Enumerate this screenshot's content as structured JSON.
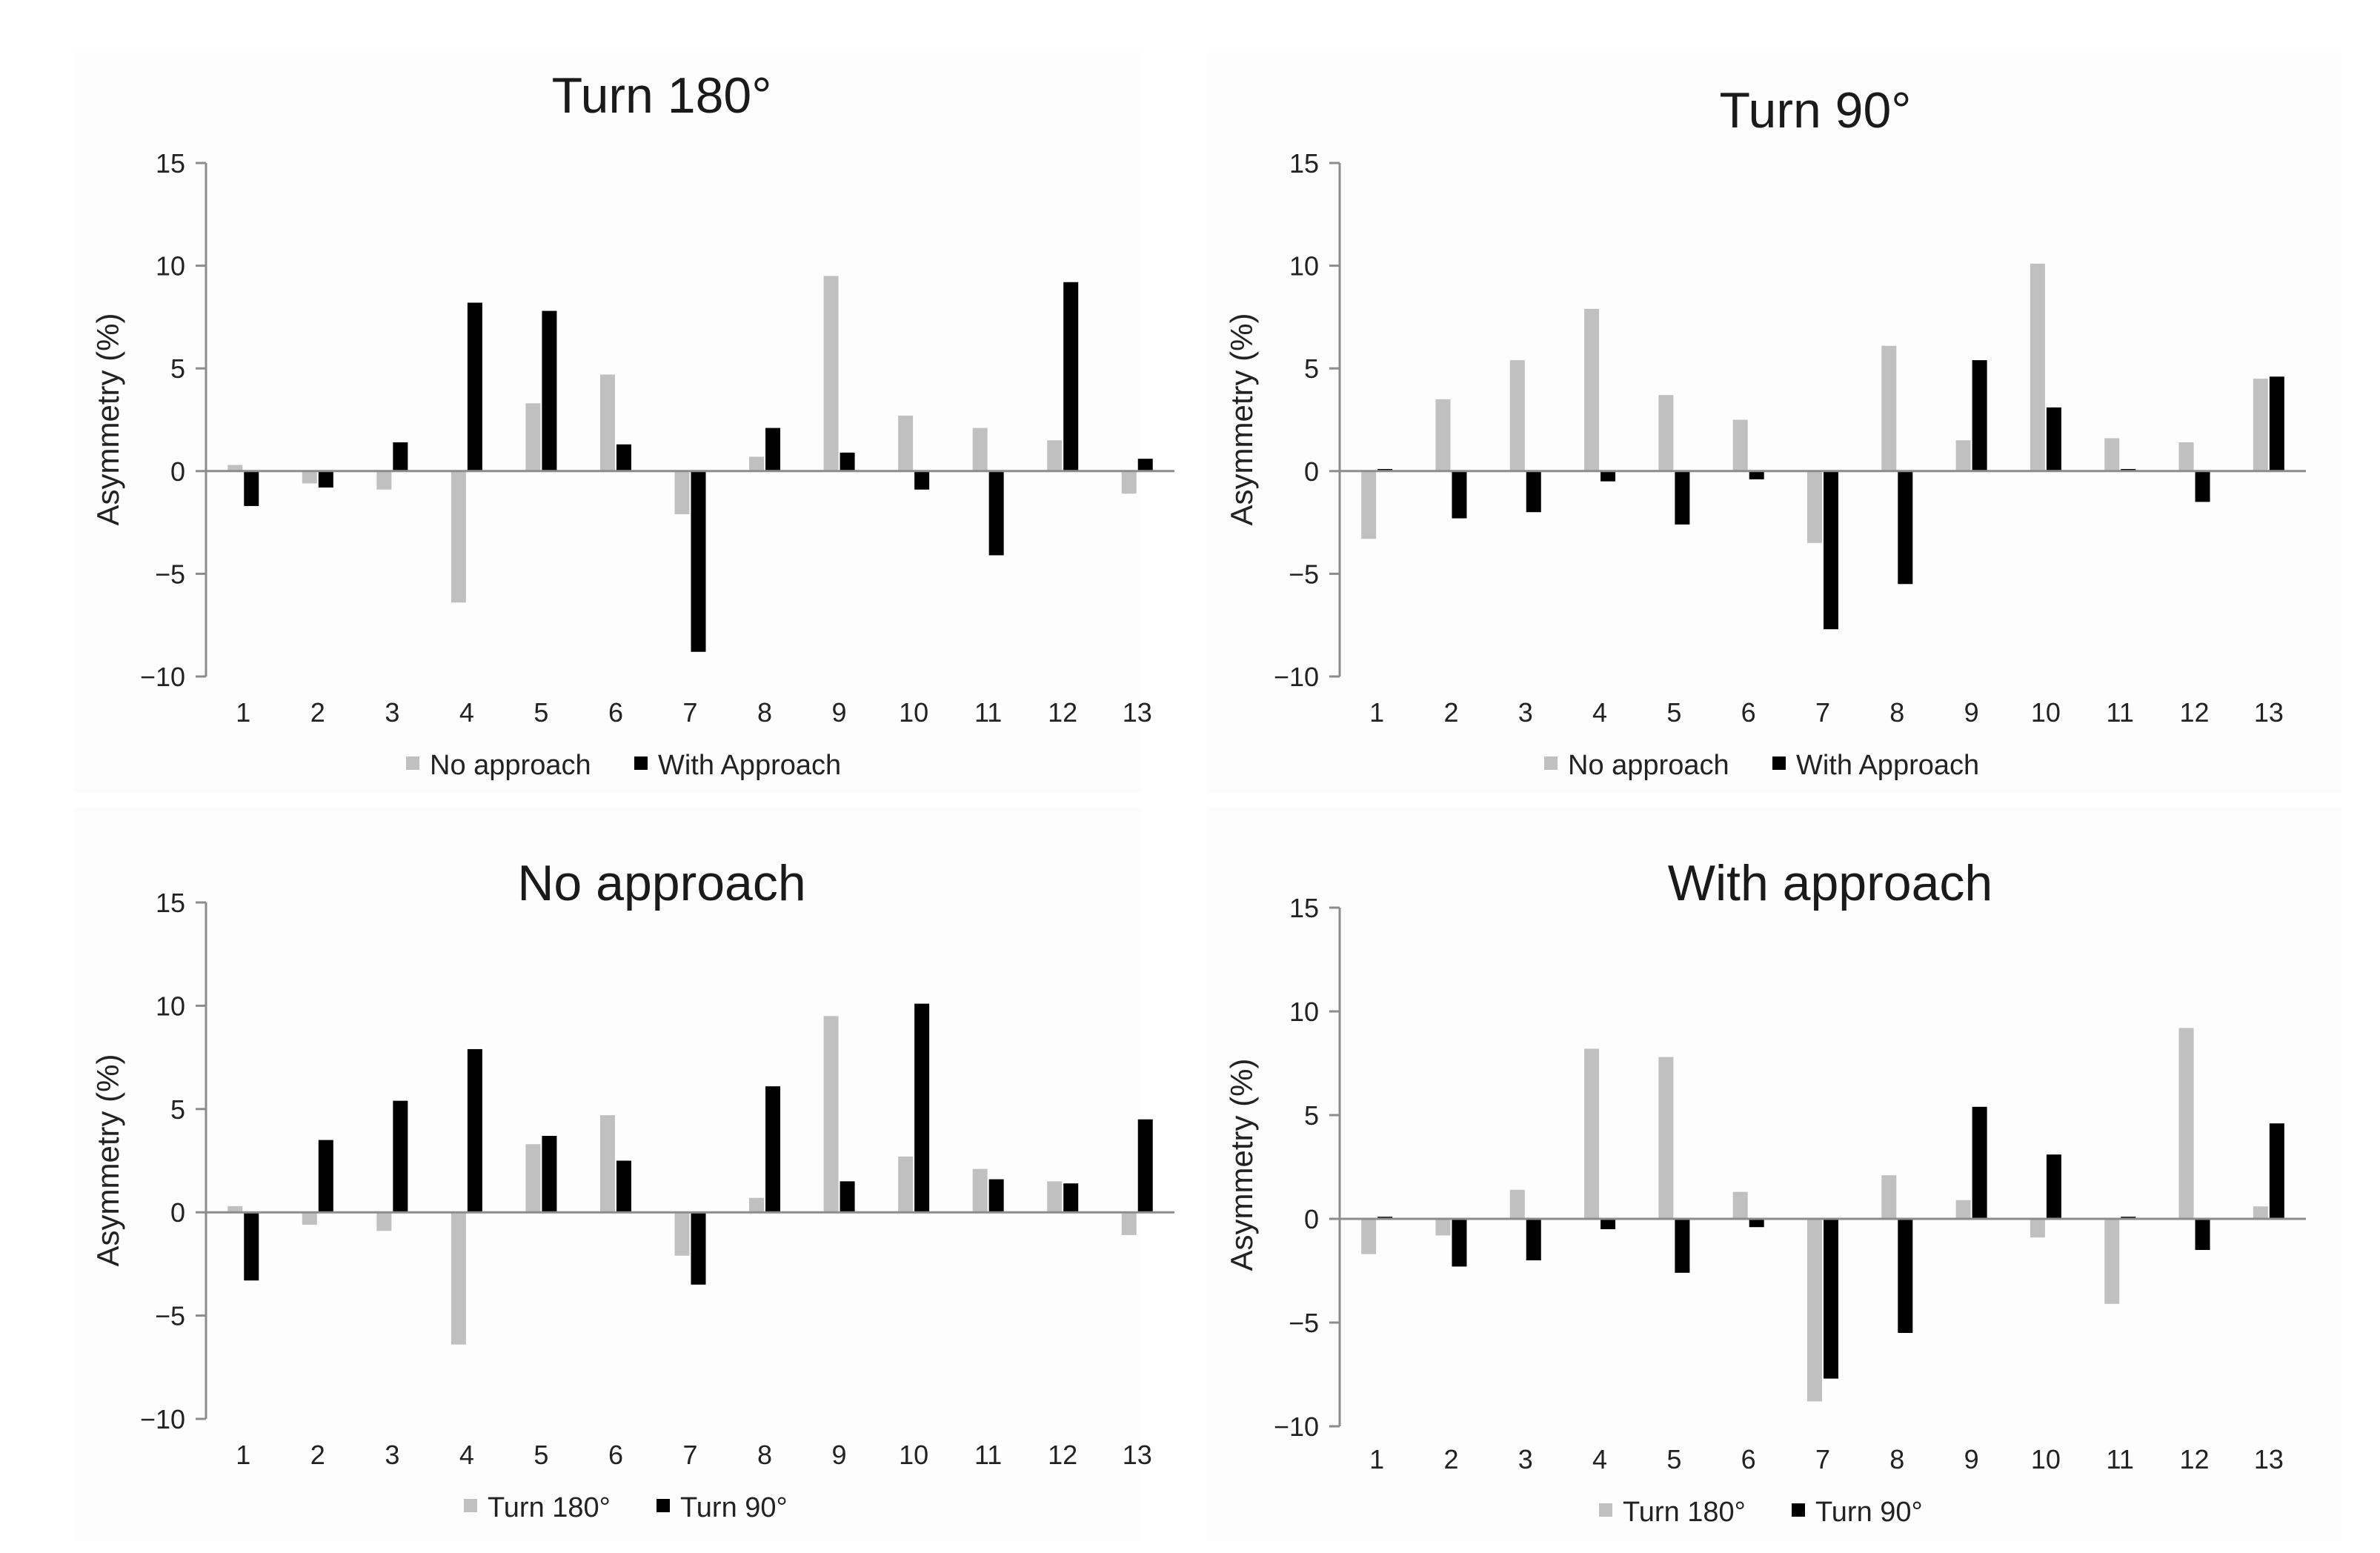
{
  "chart_data": [
    {
      "type": "bar",
      "title": "Turn 180°",
      "ylabel": "Asymmetry (%)",
      "xlabel": "",
      "ylim": [
        -10,
        15
      ],
      "yticks": [
        -10,
        -5,
        0,
        5,
        10,
        15
      ],
      "ytick_labels": [
        "−10",
        "−5",
        "0",
        "5",
        "10",
        "15"
      ],
      "legend_position": "bottom-center",
      "categories": [
        "1",
        "2",
        "3",
        "4",
        "5",
        "6",
        "7",
        "8",
        "9",
        "10",
        "11",
        "12",
        "13"
      ],
      "series": [
        {
          "name": "No approach",
          "color": "#c0c0c0",
          "values": [
            0.3,
            -0.6,
            -0.9,
            -6.4,
            3.3,
            4.7,
            -2.1,
            0.7,
            9.5,
            2.7,
            2.1,
            1.5,
            -1.1
          ]
        },
        {
          "name": "With Approach",
          "color": "#000000",
          "values": [
            -1.7,
            -0.8,
            1.4,
            8.2,
            7.8,
            1.3,
            -8.8,
            2.1,
            0.9,
            -0.9,
            -4.1,
            9.2,
            0.6
          ]
        }
      ]
    },
    {
      "type": "bar",
      "title": "Turn 90°",
      "ylabel": "Asymmetry (%)",
      "xlabel": "",
      "ylim": [
        -10,
        15
      ],
      "yticks": [
        -10,
        -5,
        0,
        5,
        10,
        15
      ],
      "ytick_labels": [
        "−10",
        "−5",
        "0",
        "5",
        "10",
        "15"
      ],
      "legend_position": "bottom-center",
      "categories": [
        "1",
        "2",
        "3",
        "4",
        "5",
        "6",
        "7",
        "8",
        "9",
        "10",
        "11",
        "12",
        "13"
      ],
      "series": [
        {
          "name": "No approach",
          "color": "#c0c0c0",
          "values": [
            -3.3,
            3.5,
            5.4,
            7.9,
            3.7,
            2.5,
            -3.5,
            6.1,
            1.5,
            10.1,
            1.6,
            1.4,
            4.5
          ]
        },
        {
          "name": "With Approach",
          "color": "#000000",
          "values": [
            0.1,
            -2.3,
            -2.0,
            -0.5,
            -2.6,
            -0.4,
            -7.7,
            -5.5,
            5.4,
            3.1,
            0.1,
            -1.5,
            4.6
          ]
        }
      ]
    },
    {
      "type": "bar",
      "title": "No approach",
      "ylabel": "Asymmetry (%)",
      "xlabel": "",
      "ylim": [
        -10,
        15
      ],
      "yticks": [
        -10,
        -5,
        0,
        5,
        10,
        15
      ],
      "ytick_labels": [
        "−10",
        "−5",
        "0",
        "5",
        "10",
        "15"
      ],
      "legend_position": "bottom-center",
      "categories": [
        "1",
        "2",
        "3",
        "4",
        "5",
        "6",
        "7",
        "8",
        "9",
        "10",
        "11",
        "12",
        "13"
      ],
      "series": [
        {
          "name": "Turn 180°",
          "color": "#c0c0c0",
          "values": [
            0.3,
            -0.6,
            -0.9,
            -6.4,
            3.3,
            4.7,
            -2.1,
            0.7,
            9.5,
            2.7,
            2.1,
            1.5,
            -1.1
          ]
        },
        {
          "name": "Turn 90°",
          "color": "#000000",
          "values": [
            -3.3,
            3.5,
            5.4,
            7.9,
            3.7,
            2.5,
            -3.5,
            6.1,
            1.5,
            10.1,
            1.6,
            1.4,
            4.5
          ]
        }
      ]
    },
    {
      "type": "bar",
      "title": "With approach",
      "ylabel": "Asymmetry (%)",
      "xlabel": "",
      "ylim": [
        -10,
        15
      ],
      "yticks": [
        -10,
        -5,
        0,
        5,
        10,
        15
      ],
      "ytick_labels": [
        "−10",
        "−5",
        "0",
        "5",
        "10",
        "15"
      ],
      "legend_position": "bottom-center",
      "categories": [
        "1",
        "2",
        "3",
        "4",
        "5",
        "6",
        "7",
        "8",
        "9",
        "10",
        "11",
        "12",
        "13"
      ],
      "series": [
        {
          "name": "Turn 180°",
          "color": "#c0c0c0",
          "values": [
            -1.7,
            -0.8,
            1.4,
            8.2,
            7.8,
            1.3,
            -8.8,
            2.1,
            0.9,
            -0.9,
            -4.1,
            9.2,
            0.6
          ]
        },
        {
          "name": "Turn 90°",
          "color": "#000000",
          "values": [
            0.1,
            -2.3,
            -2.0,
            -0.5,
            -2.6,
            -0.4,
            -7.7,
            -5.5,
            5.4,
            3.1,
            0.1,
            -1.5,
            4.6
          ]
        }
      ]
    }
  ]
}
